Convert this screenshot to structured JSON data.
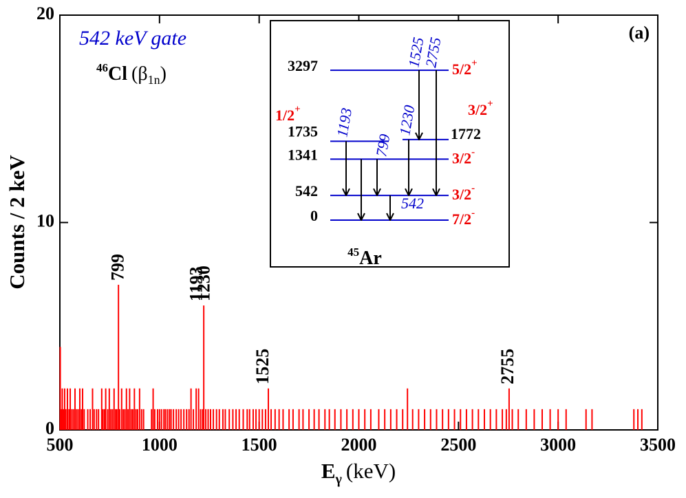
{
  "chart_data": {
    "type": "spectrum",
    "title": "542 keV gate",
    "subtitle": {
      "mass": "46",
      "element": "Cl",
      "open": "(β",
      "decay_sub": "1n",
      "close": ")"
    },
    "panel_label": "(a)",
    "ylabel": "Counts / 2 keV",
    "xlabel": {
      "symbol": "E",
      "sub": "γ",
      "unit": "(keV)"
    },
    "color": "#ff0000",
    "x": [
      502,
      506,
      512,
      518,
      524,
      530,
      538,
      546,
      552,
      560,
      568,
      576,
      584,
      592,
      600,
      608,
      614,
      622,
      640,
      652,
      664,
      672,
      684,
      694,
      710,
      716,
      724,
      730,
      740,
      748,
      756,
      764,
      772,
      780,
      786,
      794,
      800,
      810,
      818,
      826,
      834,
      842,
      850,
      858,
      866,
      874,
      882,
      890,
      900,
      910,
      920,
      960,
      968,
      976,
      990,
      1000,
      1010,
      1022,
      1030,
      1040,
      1050,
      1058,
      1070,
      1084,
      1096,
      1108,
      1122,
      1136,
      1148,
      1158,
      1170,
      1184,
      1196,
      1206,
      1216,
      1222,
      1232,
      1244,
      1256,
      1270,
      1286,
      1300,
      1318,
      1330,
      1350,
      1368,
      1384,
      1400,
      1420,
      1440,
      1452,
      1470,
      1484,
      1500,
      1516,
      1532,
      1546,
      1560,
      1580,
      1600,
      1620,
      1650,
      1670,
      1700,
      1720,
      1750,
      1776,
      1800,
      1830,
      1852,
      1880,
      1910,
      1940,
      1970,
      2000,
      2030,
      2060,
      2100,
      2130,
      2160,
      2190,
      2220,
      2244,
      2270,
      2300,
      2330,
      2360,
      2390,
      2420,
      2450,
      2480,
      2510,
      2540,
      2570,
      2600,
      2630,
      2660,
      2690,
      2720,
      2740,
      2754,
      2770,
      2800,
      2840,
      2880,
      2920,
      2960,
      3000,
      3040,
      3140,
      3170,
      3380,
      3400,
      3420
    ],
    "values": [
      4,
      1,
      2,
      1,
      2,
      1,
      2,
      1,
      2,
      1,
      1,
      2,
      1,
      1,
      2,
      1,
      2,
      1,
      1,
      1,
      2,
      1,
      1,
      1,
      2,
      1,
      1,
      2,
      1,
      2,
      1,
      1,
      2,
      1,
      1,
      7,
      1,
      2,
      1,
      1,
      2,
      1,
      2,
      1,
      1,
      2,
      1,
      1,
      2,
      1,
      1,
      1,
      2,
      1,
      1,
      1,
      1,
      1,
      1,
      1,
      1,
      1,
      1,
      1,
      1,
      1,
      1,
      1,
      1,
      2,
      1,
      2,
      2,
      1,
      1,
      6,
      1,
      1,
      1,
      1,
      1,
      1,
      1,
      1,
      1,
      1,
      1,
      1,
      1,
      1,
      1,
      1,
      1,
      1,
      1,
      1,
      2,
      1,
      1,
      1,
      1,
      1,
      1,
      1,
      1,
      1,
      1,
      1,
      1,
      1,
      1,
      1,
      1,
      1,
      1,
      1,
      1,
      1,
      1,
      1,
      1,
      1,
      2,
      1,
      1,
      1,
      1,
      1,
      1,
      1,
      1,
      1,
      1,
      1,
      1,
      1,
      1,
      1,
      1,
      1,
      2,
      1,
      1,
      1,
      1,
      1,
      1,
      1,
      1,
      1,
      1,
      1,
      1,
      1
    ],
    "xlim": [
      500,
      3500
    ],
    "ylim": [
      0,
      20
    ],
    "xticks": [
      500,
      1000,
      1500,
      2000,
      2500,
      3000,
      3500
    ],
    "yticks": [
      0,
      10,
      20
    ],
    "annotations": [
      {
        "text": "799",
        "x": 799
      },
      {
        "text": "1193",
        "x": 1193
      },
      {
        "text": "1230",
        "x": 1230
      },
      {
        "text": "1525",
        "x": 1525
      },
      {
        "text": "2755",
        "x": 2755
      }
    ],
    "inset": {
      "nucleus": {
        "mass": "45",
        "element": "Ar"
      },
      "line_color": "#0000cc",
      "label_color": "#0000cc",
      "spin_color": "#ee0000",
      "levels": [
        {
          "energy": 3297,
          "spin": "5/2",
          "parity": "+"
        },
        {
          "energy": 1772,
          "spin": "3/2",
          "parity": "+"
        },
        {
          "energy": 1735,
          "spin": "1/2",
          "parity": "+"
        },
        {
          "energy": 1341,
          "spin": "3/2",
          "parity": "-"
        },
        {
          "energy": 542,
          "spin": "3/2",
          "parity": "-"
        },
        {
          "energy": 0,
          "spin": "7/2",
          "parity": "-"
        }
      ],
      "transitions": [
        {
          "label": "1193",
          "from": 1735,
          "to": 542
        },
        {
          "from": 1341,
          "to": 0
        },
        {
          "label": "799",
          "from": 1341,
          "to": 542
        },
        {
          "label": "542",
          "from": 542,
          "to": 0
        },
        {
          "label": "1230",
          "from": 1772,
          "to": 542
        },
        {
          "label": "1525",
          "from": 3297,
          "to": 1772
        },
        {
          "label": "2755",
          "from": 3297,
          "to": 542
        }
      ]
    }
  }
}
